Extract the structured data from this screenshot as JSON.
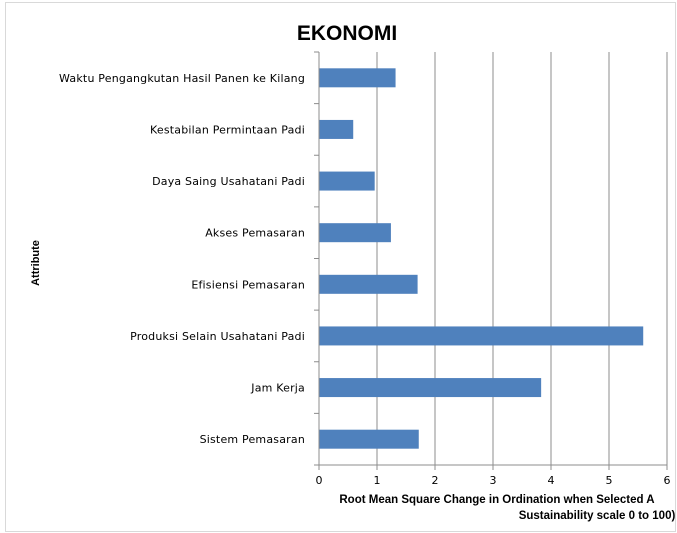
{
  "chart_data": {
    "type": "bar",
    "orientation": "horizontal",
    "title": "EKONOMI",
    "xlabel_lines": [
      "Root Mean Square Change in Ordination when Selected A",
      "Sustainability  scale 0 to 100)"
    ],
    "ylabel": "Attribute",
    "categories": [
      "Waktu Pengangkutan Hasil Panen ke Kilang",
      "Kestabilan Permintaan Padi",
      "Daya Saing Usahatani Padi",
      "Akses Pemasaran",
      "Efisiensi Pemasaran",
      "Produksi Selain Usahatani Padi",
      "Jam Kerja",
      "Sistem Pemasaran"
    ],
    "values": [
      1.32,
      0.59,
      0.96,
      1.24,
      1.7,
      5.59,
      3.83,
      1.72
    ],
    "xlim": [
      0,
      6
    ],
    "xticks": [
      "0",
      "1",
      "2",
      "3",
      "4",
      "5",
      "6"
    ],
    "grid": "vertical",
    "bar_color": "#4f81bd"
  }
}
